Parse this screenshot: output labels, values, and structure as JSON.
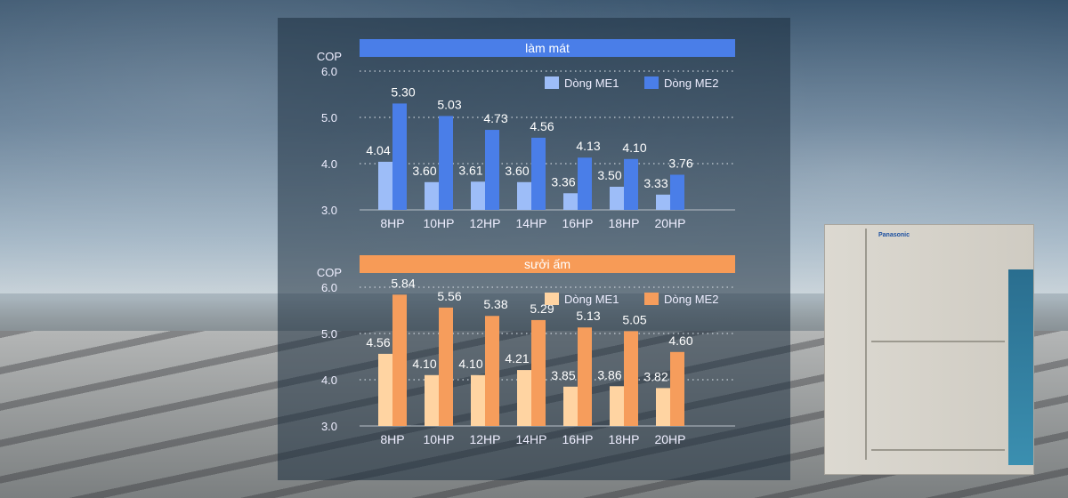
{
  "brand": "Panasonic",
  "chart_data": [
    {
      "type": "bar",
      "title": "làm mát",
      "ylabel": "COP",
      "ylim": [
        3.0,
        6.0
      ],
      "yticks": [
        "3.0",
        "4.0",
        "5.0",
        "6.0"
      ],
      "grid": true,
      "legend": "top-right",
      "categories": [
        "8HP",
        "10HP",
        "12HP",
        "14HP",
        "16HP",
        "18HP",
        "20HP"
      ],
      "series": [
        {
          "name": "Dòng ME1",
          "color": "#9dbdf8",
          "values": [
            4.04,
            3.6,
            3.61,
            3.6,
            3.36,
            3.5,
            3.33
          ]
        },
        {
          "name": "Dòng ME2",
          "color": "#4a7ee8",
          "values": [
            5.3,
            5.03,
            4.73,
            4.56,
            4.13,
            4.1,
            3.76
          ]
        }
      ],
      "title_color": "#4a7ee8"
    },
    {
      "type": "bar",
      "title": "sưởi ấm",
      "ylabel": "COP",
      "ylim": [
        3.0,
        6.0
      ],
      "yticks": [
        "3.0",
        "4.0",
        "5.0",
        "6.0"
      ],
      "grid": true,
      "legend": "top-right",
      "categories": [
        "8HP",
        "10HP",
        "12HP",
        "14HP",
        "16HP",
        "18HP",
        "20HP"
      ],
      "series": [
        {
          "name": "Dòng ME1",
          "color": "#ffd4a2",
          "values": [
            4.56,
            4.1,
            4.1,
            4.21,
            3.85,
            3.86,
            3.82
          ]
        },
        {
          "name": "Dòng ME2",
          "color": "#f69d5c",
          "values": [
            5.84,
            5.56,
            5.38,
            5.29,
            5.13,
            5.05,
            4.6
          ]
        }
      ],
      "title_color": "#f79b57"
    }
  ]
}
